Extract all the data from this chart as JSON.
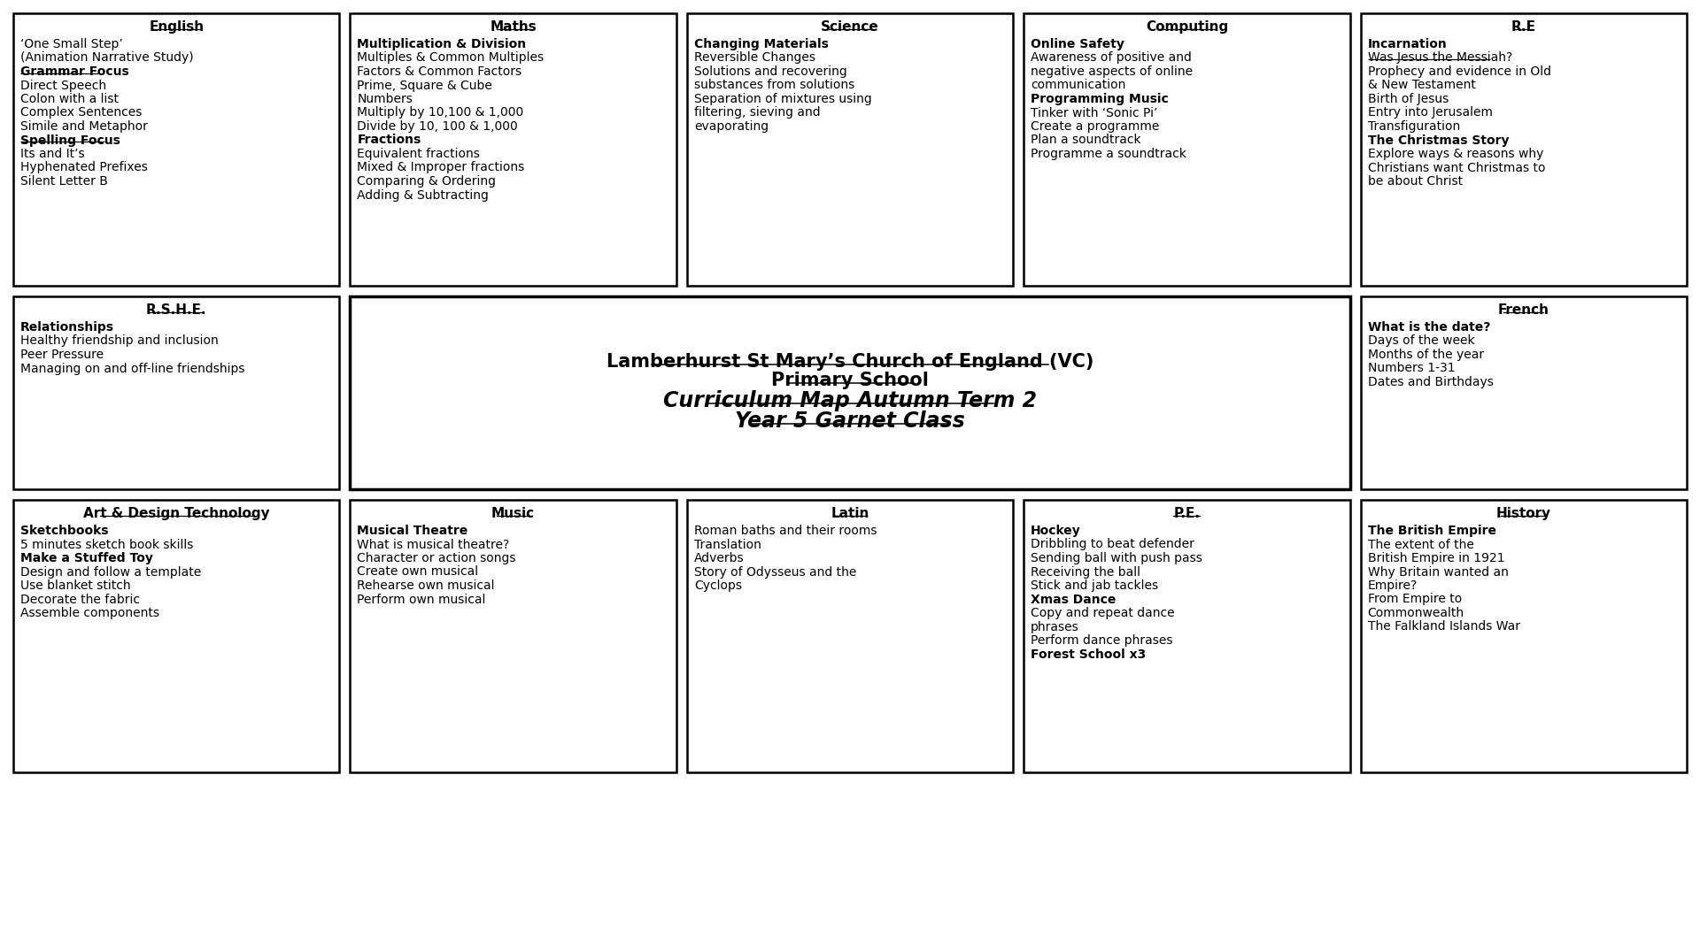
{
  "background_color": "#ffffff",
  "title_lines": [
    {
      "text": "Lamberhurst St Mary’s Church of England (VC)",
      "italic": false,
      "fontsize": 15
    },
    {
      "text": "Primary School",
      "italic": false,
      "fontsize": 15
    },
    {
      "text": "Curriculum Map Autumn Term 2",
      "italic": true,
      "fontsize": 17
    },
    {
      "text": "Year 5 Garnet Class",
      "italic": true,
      "fontsize": 17
    }
  ],
  "boxes": [
    {
      "id": "english",
      "col": 0,
      "row": 0,
      "title": "English",
      "content": [
        {
          "text": "‘One Small Step’",
          "bold": false,
          "underline": false
        },
        {
          "text": "(Animation Narrative Study)",
          "bold": false,
          "underline": false
        },
        {
          "text": "Grammar Focus",
          "bold": true,
          "underline": true
        },
        {
          "text": "Direct Speech",
          "bold": false,
          "underline": false
        },
        {
          "text": "Colon with a list",
          "bold": false,
          "underline": false
        },
        {
          "text": "Complex Sentences",
          "bold": false,
          "underline": false
        },
        {
          "text": "Simile and Metaphor",
          "bold": false,
          "underline": false
        },
        {
          "text": "Spelling Focus",
          "bold": true,
          "underline": true
        },
        {
          "text": "Its and It’s",
          "bold": false,
          "underline": false
        },
        {
          "text": "Hyphenated Prefixes",
          "bold": false,
          "underline": false
        },
        {
          "text": "Silent Letter B",
          "bold": false,
          "underline": false
        }
      ]
    },
    {
      "id": "maths",
      "col": 1,
      "row": 0,
      "title": "Maths",
      "content": [
        {
          "text": "Multiplication & Division",
          "bold": true,
          "underline": false
        },
        {
          "text": "Multiples & Common Multiples",
          "bold": false,
          "underline": false
        },
        {
          "text": "Factors & Common Factors",
          "bold": false,
          "underline": false
        },
        {
          "text": "Prime, Square & Cube",
          "bold": false,
          "underline": false
        },
        {
          "text": "Numbers",
          "bold": false,
          "underline": false
        },
        {
          "text": "Multiply by 10,100 & 1,000",
          "bold": false,
          "underline": false
        },
        {
          "text": "Divide by 10, 100 & 1,000",
          "bold": false,
          "underline": false
        },
        {
          "text": "Fractions",
          "bold": true,
          "underline": false
        },
        {
          "text": "Equivalent fractions",
          "bold": false,
          "underline": false
        },
        {
          "text": "Mixed & Improper fractions",
          "bold": false,
          "underline": false
        },
        {
          "text": "Comparing & Ordering",
          "bold": false,
          "underline": false
        },
        {
          "text": "Adding & Subtracting",
          "bold": false,
          "underline": false
        }
      ]
    },
    {
      "id": "science",
      "col": 2,
      "row": 0,
      "title": "Science",
      "content": [
        {
          "text": "Changing Materials",
          "bold": true,
          "underline": false
        },
        {
          "text": "Reversible Changes",
          "bold": false,
          "underline": false
        },
        {
          "text": "Solutions and recovering",
          "bold": false,
          "underline": false
        },
        {
          "text": "substances from solutions",
          "bold": false,
          "underline": false
        },
        {
          "text": "Separation of mixtures using",
          "bold": false,
          "underline": false
        },
        {
          "text": "filtering, sieving and",
          "bold": false,
          "underline": false
        },
        {
          "text": "evaporating",
          "bold": false,
          "underline": false
        }
      ]
    },
    {
      "id": "computing",
      "col": 3,
      "row": 0,
      "title": "Computing",
      "content": [
        {
          "text": "Online Safety",
          "bold": true,
          "underline": false
        },
        {
          "text": "Awareness of positive and",
          "bold": false,
          "underline": false
        },
        {
          "text": "negative aspects of online",
          "bold": false,
          "underline": false
        },
        {
          "text": "communication",
          "bold": false,
          "underline": false
        },
        {
          "text": "Programming Music",
          "bold": true,
          "underline": false
        },
        {
          "text": "Tinker with ‘Sonic Pi’",
          "bold": false,
          "underline": false
        },
        {
          "text": "Create a programme",
          "bold": false,
          "underline": false
        },
        {
          "text": "Plan a soundtrack",
          "bold": false,
          "underline": false
        },
        {
          "text": "Programme a soundtrack",
          "bold": false,
          "underline": false
        }
      ]
    },
    {
      "id": "re",
      "col": 4,
      "row": 0,
      "title": "R.E",
      "content": [
        {
          "text": "Incarnation",
          "bold": true,
          "underline": false
        },
        {
          "text": "Was Jesus the Messiah?",
          "bold": false,
          "underline": true
        },
        {
          "text": "Prophecy and evidence in Old",
          "bold": false,
          "underline": false
        },
        {
          "text": "& New Testament",
          "bold": false,
          "underline": false
        },
        {
          "text": "Birth of Jesus",
          "bold": false,
          "underline": false
        },
        {
          "text": "Entry into Jerusalem",
          "bold": false,
          "underline": false
        },
        {
          "text": "Transfiguration",
          "bold": false,
          "underline": false
        },
        {
          "text": "The Christmas Story",
          "bold": true,
          "underline": false
        },
        {
          "text": "Explore ways & reasons why",
          "bold": false,
          "underline": false
        },
        {
          "text": "Christians want Christmas to",
          "bold": false,
          "underline": false
        },
        {
          "text": "be about Christ",
          "bold": false,
          "underline": false
        }
      ]
    },
    {
      "id": "rshe",
      "col": 0,
      "row": 1,
      "title": "R.S.H.E.",
      "content": [
        {
          "text": "Relationships",
          "bold": true,
          "underline": false
        },
        {
          "text": "Healthy friendship and inclusion",
          "bold": false,
          "underline": false
        },
        {
          "text": "Peer Pressure",
          "bold": false,
          "underline": false
        },
        {
          "text": "Managing on and off-line friendships",
          "bold": false,
          "underline": false
        }
      ]
    },
    {
      "id": "french",
      "col": 4,
      "row": 1,
      "title": "French",
      "content": [
        {
          "text": "What is the date?",
          "bold": true,
          "underline": false
        },
        {
          "text": "Days of the week",
          "bold": false,
          "underline": false
        },
        {
          "text": "Months of the year",
          "bold": false,
          "underline": false
        },
        {
          "text": "Numbers 1-31",
          "bold": false,
          "underline": false
        },
        {
          "text": "Dates and Birthdays",
          "bold": false,
          "underline": false
        }
      ]
    },
    {
      "id": "adt",
      "col": 0,
      "row": 2,
      "title": "Art & Design Technology",
      "content": [
        {
          "text": "Sketchbooks",
          "bold": true,
          "underline": false
        },
        {
          "text": "5 minutes sketch book skills",
          "bold": false,
          "underline": false
        },
        {
          "text": "Make a Stuffed Toy",
          "bold": true,
          "underline": false
        },
        {
          "text": "Design and follow a template",
          "bold": false,
          "underline": false
        },
        {
          "text": "Use blanket stitch",
          "bold": false,
          "underline": false
        },
        {
          "text": "Decorate the fabric",
          "bold": false,
          "underline": false
        },
        {
          "text": "Assemble components",
          "bold": false,
          "underline": false
        }
      ]
    },
    {
      "id": "music",
      "col": 1,
      "row": 2,
      "title": "Music",
      "content": [
        {
          "text": "Musical Theatre",
          "bold": true,
          "underline": false
        },
        {
          "text": "What is musical theatre?",
          "bold": false,
          "underline": false
        },
        {
          "text": "Character or action songs",
          "bold": false,
          "underline": false
        },
        {
          "text": "Create own musical",
          "bold": false,
          "underline": false
        },
        {
          "text": "Rehearse own musical",
          "bold": false,
          "underline": false
        },
        {
          "text": "Perform own musical",
          "bold": false,
          "underline": false
        }
      ]
    },
    {
      "id": "latin",
      "col": 2,
      "row": 2,
      "title": "Latin",
      "content": [
        {
          "text": "Roman baths and their rooms",
          "bold": false,
          "underline": false
        },
        {
          "text": "Translation",
          "bold": false,
          "underline": false
        },
        {
          "text": "Adverbs",
          "bold": false,
          "underline": false
        },
        {
          "text": "Story of Odysseus and the",
          "bold": false,
          "underline": false
        },
        {
          "text": "Cyclops",
          "bold": false,
          "underline": false
        }
      ]
    },
    {
      "id": "pe",
      "col": 3,
      "row": 2,
      "title": "P.E.",
      "content": [
        {
          "text": "Hockey",
          "bold": true,
          "underline": false
        },
        {
          "text": "Dribbling to beat defender",
          "bold": false,
          "underline": false
        },
        {
          "text": "Sending ball with push pass",
          "bold": false,
          "underline": false
        },
        {
          "text": "Receiving the ball",
          "bold": false,
          "underline": false
        },
        {
          "text": "Stick and jab tackles",
          "bold": false,
          "underline": false
        },
        {
          "text": "Xmas Dance",
          "bold": true,
          "underline": false
        },
        {
          "text": "Copy and repeat dance",
          "bold": false,
          "underline": false
        },
        {
          "text": "phrases",
          "bold": false,
          "underline": false
        },
        {
          "text": "Perform dance phrases",
          "bold": false,
          "underline": false
        },
        {
          "text": "Forest School x3",
          "bold": true,
          "underline": false
        }
      ]
    },
    {
      "id": "history",
      "col": 4,
      "row": 2,
      "title": "History",
      "content": [
        {
          "text": "The British Empire",
          "bold": true,
          "underline": false
        },
        {
          "text": "The extent of the",
          "bold": false,
          "underline": false
        },
        {
          "text": "British Empire in 1921",
          "bold": false,
          "underline": false
        },
        {
          "text": "Why Britain wanted an",
          "bold": false,
          "underline": false
        },
        {
          "text": "Empire?",
          "bold": false,
          "underline": false
        },
        {
          "text": "From Empire to",
          "bold": false,
          "underline": false
        },
        {
          "text": "Commonwealth",
          "bold": false,
          "underline": false
        },
        {
          "text": "The Falkland Islands War",
          "bold": false,
          "underline": false
        }
      ]
    }
  ]
}
